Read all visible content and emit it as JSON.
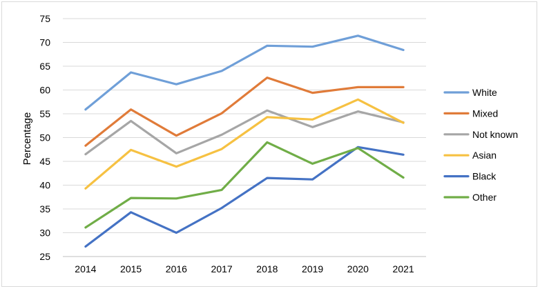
{
  "chart_data": {
    "type": "line",
    "title": "",
    "xlabel": "",
    "ylabel": "Percentage",
    "ylim": [
      25,
      75
    ],
    "yticks": [
      25,
      30,
      35,
      40,
      45,
      50,
      55,
      60,
      65,
      70,
      75
    ],
    "categories": [
      "2014",
      "2015",
      "2016",
      "2017",
      "2018",
      "2019",
      "2020",
      "2021"
    ],
    "grid": "horizontal",
    "legend_position": "right",
    "series": [
      {
        "name": "White",
        "color": "#6f9fd8",
        "values": [
          55.9,
          63.7,
          61.2,
          64.0,
          69.3,
          69.1,
          71.4,
          68.4
        ]
      },
      {
        "name": "Mixed",
        "color": "#e07b39",
        "values": [
          48.3,
          55.9,
          50.4,
          55.1,
          62.6,
          59.4,
          60.6,
          60.6
        ]
      },
      {
        "name": "Not known",
        "color": "#a6a6a6",
        "values": [
          46.5,
          53.5,
          46.7,
          50.6,
          55.7,
          52.2,
          55.5,
          53.2
        ]
      },
      {
        "name": "Asian",
        "color": "#f6c142",
        "values": [
          39.3,
          47.4,
          43.9,
          47.6,
          54.3,
          53.8,
          58.0,
          53.1
        ]
      },
      {
        "name": "Black",
        "color": "#4472c4",
        "values": [
          27.1,
          34.3,
          30.0,
          35.2,
          41.5,
          41.2,
          48.0,
          46.4
        ]
      },
      {
        "name": "Other",
        "color": "#70ad47",
        "values": [
          31.1,
          37.3,
          37.2,
          39.0,
          49.0,
          44.5,
          47.8,
          41.6
        ]
      }
    ]
  }
}
